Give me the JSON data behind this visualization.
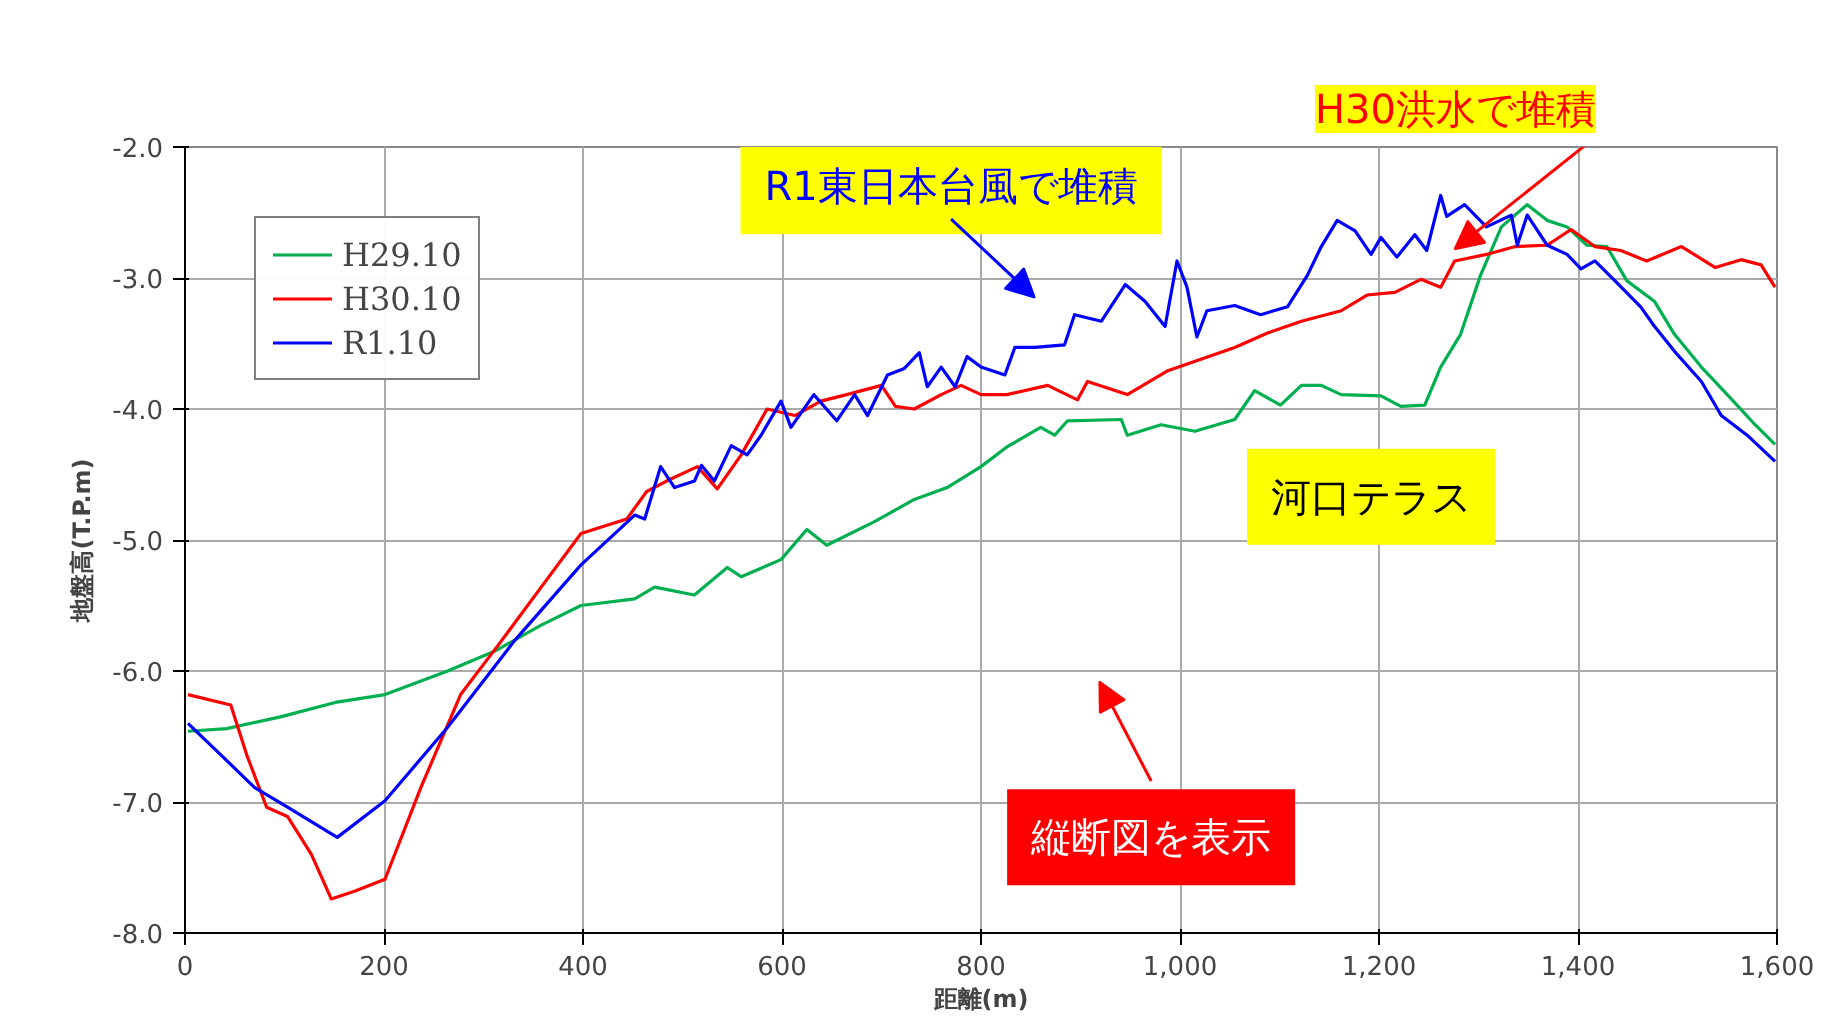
{
  "chart_data": {
    "type": "line",
    "xlabel": "距離(m)",
    "ylabel": "地盤高(T.P.m)",
    "xlim": [
      0,
      1600
    ],
    "ylim": [
      -8,
      -2
    ],
    "xticks": [
      0,
      200,
      400,
      600,
      800,
      {
        "value": 1000,
        "label": "1,000"
      },
      {
        "value": 1200,
        "label": "1,200"
      },
      {
        "value": 1400,
        "label": "1,400"
      },
      {
        "value": 1600,
        "label": "1,600"
      }
    ],
    "yticks": [
      {
        "value": -8,
        "label": "-8.0"
      },
      {
        "value": -7,
        "label": "-7.0"
      },
      {
        "value": -6,
        "label": "-6.0"
      },
      {
        "value": -5,
        "label": "-5.0"
      },
      {
        "value": -4,
        "label": "-4.0"
      },
      {
        "value": -3,
        "label": "-3.0"
      },
      {
        "value": -2,
        "label": "-2.0"
      }
    ],
    "grid": true,
    "legend": "top left",
    "marker": "none",
    "line_style": "solid",
    "series": [
      {
        "name": "H29.10",
        "color": "#00b050",
        "x": [
          3,
          42,
          96,
          151,
          201,
          264,
          311,
          358,
          398,
          452,
          472,
          512,
          545,
          559,
          599,
          625,
          645,
          693,
          733,
          766,
          800,
          826,
          860,
          874,
          887,
          941,
          947,
          981,
          1015,
          1055,
          1075,
          1101,
          1122,
          1142,
          1162,
          1202,
          1222,
          1246,
          1262,
          1282,
          1302,
          1323,
          1349,
          1369,
          1389,
          1409,
          1429,
          1449,
          1477,
          1497,
          1524,
          1550,
          1578,
          1598
        ],
        "values": [
          -6.46,
          -6.44,
          -6.35,
          -6.24,
          -6.18,
          -6.0,
          -5.85,
          -5.65,
          -5.5,
          -5.45,
          -5.36,
          -5.42,
          -5.21,
          -5.28,
          -5.15,
          -4.92,
          -5.04,
          -4.86,
          -4.69,
          -4.6,
          -4.44,
          -4.29,
          -4.14,
          -4.2,
          -4.09,
          -4.08,
          -4.2,
          -4.12,
          -4.17,
          -4.08,
          -3.86,
          -3.97,
          -3.82,
          -3.82,
          -3.89,
          -3.9,
          -3.98,
          -3.97,
          -3.68,
          -3.43,
          -2.98,
          -2.61,
          -2.44,
          -2.56,
          -2.61,
          -2.75,
          -2.76,
          -3.02,
          -3.18,
          -3.43,
          -3.68,
          -3.89,
          -4.12,
          -4.27
        ]
      },
      {
        "name": "H30.10",
        "color": "#ff0000",
        "x": [
          3,
          46,
          62,
          82,
          103,
          127,
          147,
          171,
          201,
          237,
          277,
          318,
          358,
          398,
          444,
          464,
          484,
          515,
          535,
          559,
          585,
          613,
          639,
          665,
          700,
          714,
          733,
          760,
          780,
          800,
          826,
          867,
          897,
          907,
          947,
          987,
          1021,
          1055,
          1088,
          1122,
          1162,
          1188,
          1216,
          1242,
          1262,
          1276,
          1308,
          1337,
          1369,
          1393,
          1417,
          1443,
          1469,
          1504,
          1538,
          1564,
          1584,
          1598
        ],
        "values": [
          -6.18,
          -6.26,
          -6.64,
          -7.04,
          -7.11,
          -7.4,
          -7.74,
          -7.68,
          -7.59,
          -6.89,
          -6.18,
          -5.77,
          -5.36,
          -4.95,
          -4.84,
          -4.63,
          -4.55,
          -4.44,
          -4.61,
          -4.35,
          -4.0,
          -4.05,
          -3.94,
          -3.89,
          -3.82,
          -3.98,
          -4.0,
          -3.89,
          -3.82,
          -3.89,
          -3.89,
          -3.82,
          -3.93,
          -3.79,
          -3.89,
          -3.71,
          -3.62,
          -3.53,
          -3.42,
          -3.33,
          -3.25,
          -3.13,
          -3.11,
          -3.01,
          -3.07,
          -2.87,
          -2.82,
          -2.76,
          -2.75,
          -2.63,
          -2.76,
          -2.79,
          -2.87,
          -2.76,
          -2.92,
          -2.86,
          -2.9,
          -3.07
        ]
      },
      {
        "name": "R1.10",
        "color": "#0000ff",
        "x": [
          3,
          36,
          70,
          103,
          153,
          201,
          264,
          331,
          398,
          452,
          462,
          478,
          492,
          512,
          519,
          532,
          549,
          565,
          579,
          599,
          609,
          632,
          655,
          673,
          686,
          706,
          723,
          738,
          746,
          760,
          774,
          786,
          800,
          824,
          834,
          854,
          884,
          894,
          921,
          945,
          965,
          985,
          997,
          1007,
          1017,
          1027,
          1055,
          1081,
          1108,
          1128,
          1142,
          1158,
          1176,
          1192,
          1202,
          1218,
          1236,
          1248,
          1262,
          1268,
          1286,
          1308,
          1333,
          1339,
          1349,
          1369,
          1389,
          1403,
          1417,
          1437,
          1463,
          1477,
          1497,
          1524,
          1544,
          1570,
          1598
        ],
        "values": [
          -6.4,
          -6.64,
          -6.89,
          -7.04,
          -7.27,
          -6.99,
          -6.43,
          -5.77,
          -5.19,
          -4.81,
          -4.84,
          -4.44,
          -4.6,
          -4.55,
          -4.43,
          -4.55,
          -4.28,
          -4.35,
          -4.2,
          -3.94,
          -4.14,
          -3.89,
          -4.09,
          -3.89,
          -4.05,
          -3.74,
          -3.69,
          -3.57,
          -3.83,
          -3.68,
          -3.83,
          -3.6,
          -3.68,
          -3.74,
          -3.53,
          -3.53,
          -3.51,
          -3.28,
          -3.33,
          -3.05,
          -3.18,
          -3.37,
          -2.87,
          -3.07,
          -3.45,
          -3.25,
          -3.21,
          -3.28,
          -3.22,
          -2.98,
          -2.76,
          -2.56,
          -2.64,
          -2.82,
          -2.69,
          -2.84,
          -2.67,
          -2.79,
          -2.37,
          -2.53,
          -2.44,
          -2.61,
          -2.52,
          -2.75,
          -2.52,
          -2.75,
          -2.82,
          -2.93,
          -2.87,
          -3.02,
          -3.22,
          -3.37,
          -3.56,
          -3.79,
          -4.05,
          -4.2,
          -4.4
        ]
      }
    ],
    "annotations": [
      "R1東日本台風で堆積",
      "H30洪水で堆積",
      "河口テラス",
      "縦断図を表示"
    ]
  }
}
